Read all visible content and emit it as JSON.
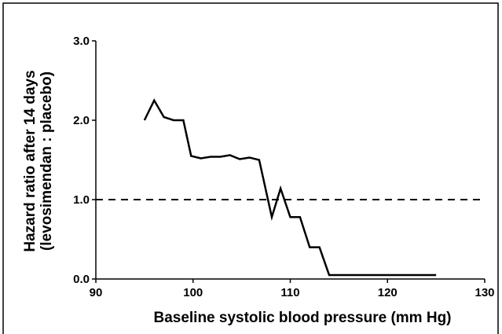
{
  "chart_data": {
    "type": "line",
    "xlabel": "Baseline systolic blood pressure (mm Hg)",
    "ylabel": [
      "Hazard ratio after 14 days",
      "(levosimendan : placebo)"
    ],
    "x": [
      95,
      96,
      97,
      98,
      99,
      99.8,
      100.8,
      101.8,
      102.8,
      103.8,
      104.8,
      105.8,
      106.8,
      108.1,
      109,
      110,
      111,
      112,
      113,
      114,
      125
    ],
    "series": [
      {
        "color": "#000000",
        "values": [
          2.0,
          2.25,
          2.04,
          2.0,
          2.0,
          1.55,
          1.52,
          1.54,
          1.54,
          1.56,
          1.51,
          1.53,
          1.5,
          0.78,
          1.14,
          0.78,
          0.78,
          0.4,
          0.4,
          0.05,
          0.05
        ]
      }
    ],
    "reference_line": 1.0,
    "xlim": [
      90,
      130
    ],
    "xticks": [
      90,
      100,
      110,
      120,
      130
    ],
    "ylim": [
      0,
      3.0
    ],
    "yticks": [
      {
        "value": 0,
        "label": "0.0"
      },
      {
        "value": 1,
        "label": "1.0"
      },
      {
        "value": 2,
        "label": "2.0"
      },
      {
        "value": 3,
        "label": "3.0"
      }
    ]
  }
}
